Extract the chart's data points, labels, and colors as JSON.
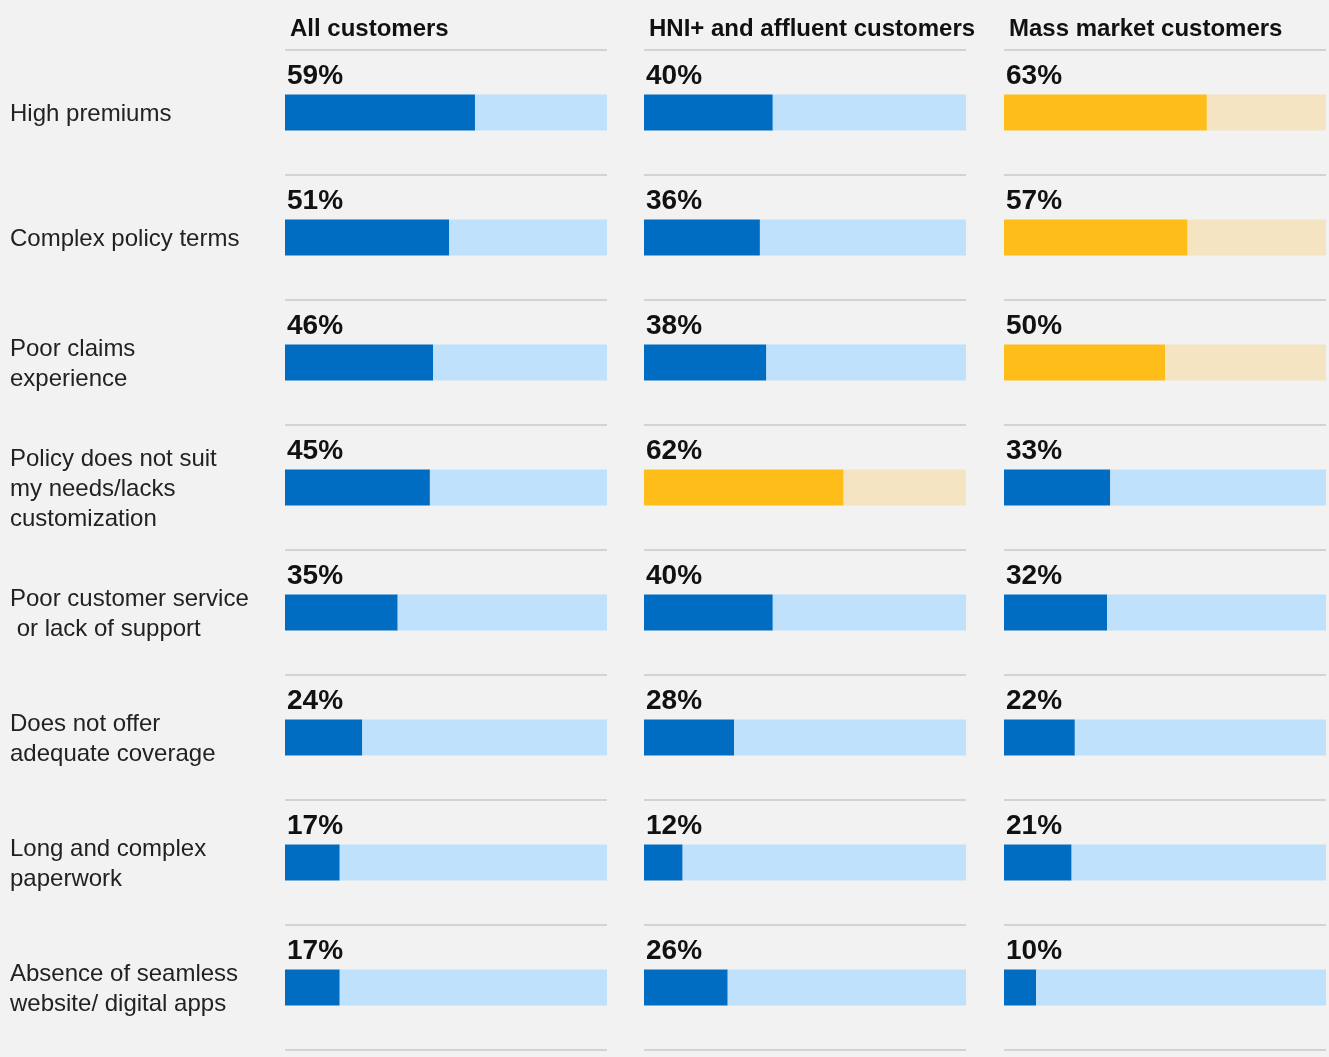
{
  "chart_data": [
    {
      "type": "bar",
      "orientation": "horizontal",
      "stacked": true,
      "title": "All customers",
      "categories": [
        "High premiums",
        "Complex policy terms",
        "Poor claims experience",
        "Policy does not suit my needs/lacks customization",
        "Poor customer service or lack of support",
        "Does not offer adequate coverage",
        "Long and complex paperwork",
        "Absence of seamless website/ digital apps"
      ],
      "series": [
        {
          "values": [
            59,
            51,
            46,
            45,
            35,
            24,
            17,
            17
          ],
          "colors": [
            "#006dc3",
            "#006dc3",
            "#006dc3",
            "#006dc3",
            "#006dc3",
            "#006dc3",
            "#006dc3",
            "#006dc3"
          ],
          "value_labels": [
            "59%",
            "51%",
            "46%",
            "45%",
            "35%",
            "24%",
            "17%",
            "17%"
          ]
        },
        {
          "values": [
            41,
            49,
            54,
            55,
            65,
            76,
            83,
            83
          ],
          "colors": [
            "#bfe1fb",
            "#bfe1fb",
            "#bfe1fb",
            "#bfe1fb",
            "#bfe1fb",
            "#bfe1fb",
            "#bfe1fb",
            "#bfe1fb"
          ]
        }
      ],
      "tick_labels": "y",
      "grid": "y"
    },
    {
      "type": "bar",
      "orientation": "horizontal",
      "stacked": true,
      "title": "HNI+ and affluent customers",
      "categories": [
        "High premiums",
        "Complex policy terms",
        "Poor claims experience",
        "Policy does not suit my needs/lacks customization",
        "Poor customer service or lack of support",
        "Does not offer adequate coverage",
        "Long and complex paperwork",
        "Absence of seamless website/ digital apps"
      ],
      "series": [
        {
          "values": [
            40,
            36,
            38,
            62,
            40,
            28,
            12,
            26
          ],
          "colors": [
            "#006dc3",
            "#006dc3",
            "#006dc3",
            "#ffbd1a",
            "#006dc3",
            "#006dc3",
            "#006dc3",
            "#006dc3"
          ],
          "value_labels": [
            "40%",
            "36%",
            "38%",
            "62%",
            "40%",
            "28%",
            "12%",
            "26%"
          ]
        },
        {
          "values": [
            60,
            64,
            62,
            38,
            60,
            72,
            88,
            74
          ],
          "colors": [
            "#bfe1fb",
            "#bfe1fb",
            "#bfe1fb",
            "#f5e4c1",
            "#bfe1fb",
            "#bfe1fb",
            "#bfe1fb",
            "#bfe1fb"
          ]
        }
      ],
      "tick_labels": false,
      "grid": "y"
    },
    {
      "type": "bar",
      "orientation": "horizontal",
      "stacked": true,
      "title": "Mass market customers",
      "categories": [
        "High premiums",
        "Complex policy terms",
        "Poor claims experience",
        "Policy does not suit my needs/lacks customization",
        "Poor customer service or lack of support",
        "Does not offer adequate coverage",
        "Long and complex paperwork",
        "Absence of seamless website/ digital apps"
      ],
      "series": [
        {
          "values": [
            63,
            57,
            50,
            33,
            32,
            22,
            21,
            10
          ],
          "colors": [
            "#ffbd1a",
            "#ffbd1a",
            "#ffbd1a",
            "#006dc3",
            "#006dc3",
            "#006dc3",
            "#006dc3",
            "#006dc3"
          ],
          "value_labels": [
            "63%",
            "57%",
            "50%",
            "33%",
            "32%",
            "22%",
            "21%",
            "10%"
          ]
        },
        {
          "values": [
            37,
            43,
            50,
            67,
            68,
            78,
            79,
            90
          ],
          "colors": [
            "#f5e4c1",
            "#f5e4c1",
            "#f5e4c1",
            "#bfe1fb",
            "#bfe1fb",
            "#bfe1fb",
            "#bfe1fb",
            "#bfe1fb"
          ]
        }
      ],
      "tick_labels": false,
      "grid": "y"
    }
  ]
}
